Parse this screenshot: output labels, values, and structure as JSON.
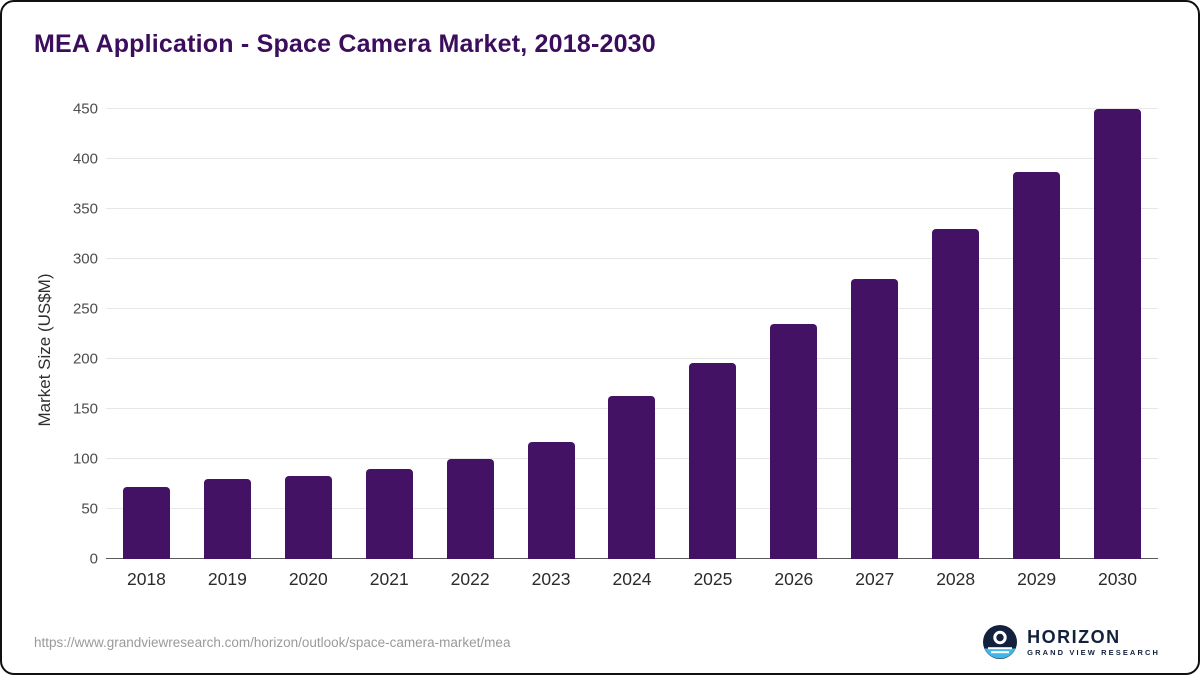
{
  "chart_data": {
    "type": "bar",
    "title": "MEA Application - Space Camera Market, 2018-2030",
    "xlabel": "",
    "ylabel": "Market Size (US$M)",
    "categories": [
      "2018",
      "2019",
      "2020",
      "2021",
      "2022",
      "2023",
      "2024",
      "2025",
      "2026",
      "2027",
      "2028",
      "2029",
      "2030"
    ],
    "values": [
      72,
      80,
      83,
      90,
      100,
      117,
      163,
      196,
      235,
      280,
      330,
      387,
      450
    ],
    "ylim": [
      0,
      450
    ],
    "yticks": [
      0,
      50,
      100,
      150,
      200,
      250,
      300,
      350,
      400,
      450
    ],
    "grid": "horizontal",
    "legend": "none",
    "bar_color": "#431264"
  },
  "footer": {
    "source_url": "https://www.grandviewresearch.com/horizon/outlook/space-camera-market/mea",
    "logo_name": "HORIZON",
    "logo_subtitle": "GRAND VIEW RESEARCH"
  }
}
